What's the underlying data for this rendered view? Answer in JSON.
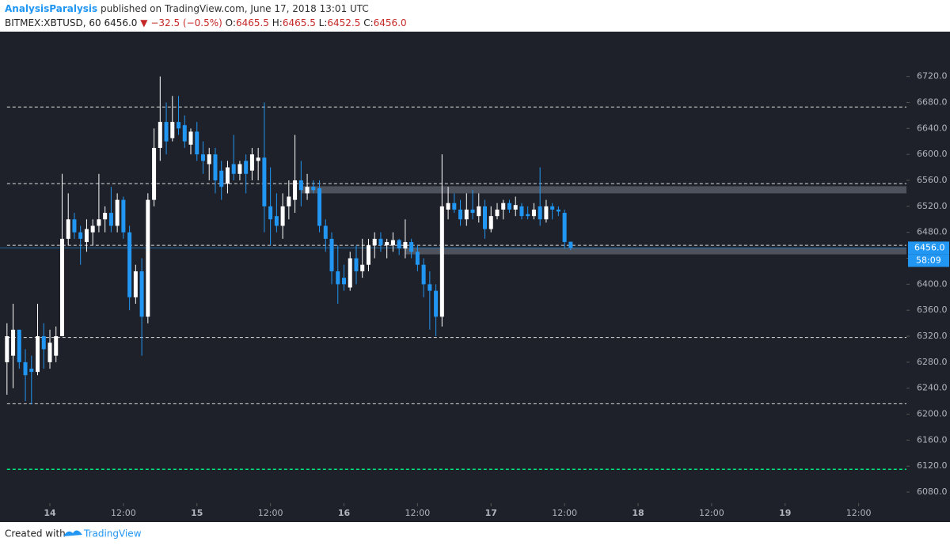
{
  "header": {
    "author": "AnalysisParalysis",
    "published": " published on TradingView.com, June 17, 2018 13:01 UTC",
    "symbol": "BITMEX:XBTUSD, 60",
    "last": "6456.0",
    "change": "▼ −32.5 (−0.5%)",
    "ohlc": [
      {
        "label": "O:",
        "value": "6465.5"
      },
      {
        "label": "H:",
        "value": "6465.5"
      },
      {
        "label": "L:",
        "value": "6452.5"
      },
      {
        "label": "C:",
        "value": "6456.0"
      }
    ]
  },
  "footer": {
    "created": "Created with",
    "brand": "TradingView"
  },
  "chart_data": {
    "type": "candlestick",
    "x": [
      -7,
      -6,
      -5,
      -4,
      -3,
      -2,
      -1,
      0,
      1,
      2,
      3,
      4,
      5,
      6,
      7,
      8,
      9,
      10,
      11,
      12,
      13,
      14,
      15,
      16,
      17,
      18,
      19,
      20,
      21,
      22,
      23,
      24,
      25,
      26,
      27,
      28,
      29,
      30,
      31,
      32,
      33,
      34,
      35,
      36,
      37,
      38,
      39,
      40,
      41,
      42,
      43,
      44,
      45,
      46,
      47,
      48,
      49,
      50,
      51,
      52,
      53,
      54,
      55,
      56,
      57,
      58,
      59,
      60,
      61,
      62,
      63,
      64,
      65,
      66,
      67,
      68,
      69,
      70,
      71,
      72,
      73,
      74,
      75,
      76,
      77,
      78,
      79,
      80,
      81,
      82,
      83,
      84,
      85
    ],
    "open": [
      6280,
      6290,
      6330,
      6280,
      6270,
      6265,
      6320,
      6280,
      6290,
      6320,
      6470,
      6500,
      6480,
      6465,
      6480,
      6490,
      6500,
      6510,
      6490,
      6530,
      6480,
      6380,
      6420,
      6350,
      6530,
      6610,
      6650,
      6625,
      6650,
      6645,
      6615,
      6635,
      6600,
      6585,
      6600,
      6575,
      6555,
      6585,
      6570,
      6590,
      6575,
      6590,
      6595,
      6520,
      6505,
      6490,
      6520,
      6530,
      6560,
      6540,
      6550,
      6548,
      6490,
      6470,
      6420,
      6410,
      6395,
      6440,
      6420,
      6430,
      6460,
      6470,
      6460,
      6460,
      6468,
      6455,
      6465,
      6450,
      6430,
      6400,
      6390,
      6350,
      6515,
      6525,
      6515,
      6500,
      6515,
      6505,
      6520,
      6485,
      6505,
      6515,
      6525,
      6515,
      6520,
      6508,
      6505,
      6520,
      6500,
      6520,
      6515,
      6510,
      6465.5
    ],
    "high": [
      6340,
      6370,
      6330,
      6300,
      6290,
      6370,
      6340,
      6330,
      6335,
      6570,
      6540,
      6510,
      6490,
      6500,
      6500,
      6570,
      6520,
      6550,
      6540,
      6535,
      6490,
      6430,
      6440,
      6540,
      6640,
      6720,
      6680,
      6690,
      6690,
      6660,
      6640,
      6650,
      6620,
      6610,
      6610,
      6590,
      6590,
      6630,
      6590,
      6600,
      6610,
      6610,
      6680,
      6580,
      6540,
      6540,
      6560,
      6630,
      6590,
      6570,
      6560,
      6560,
      6500,
      6480,
      6460,
      6430,
      6450,
      6460,
      6470,
      6470,
      6480,
      6480,
      6470,
      6480,
      6470,
      6500,
      6470,
      6460,
      6440,
      6420,
      6400,
      6600,
      6550,
      6540,
      6530,
      6540,
      6545,
      6540,
      6530,
      6520,
      6525,
      6530,
      6530,
      6535,
      6525,
      6520,
      6525,
      6580,
      6530,
      6525,
      6520,
      6515,
      6465.5
    ],
    "low": [
      6230,
      6240,
      6270,
      6220,
      6215,
      6260,
      6270,
      6270,
      6280,
      6320,
      6460,
      6470,
      6430,
      6450,
      6460,
      6480,
      6480,
      6480,
      6480,
      6470,
      6360,
      6370,
      6290,
      6340,
      6520,
      6590,
      6600,
      6620,
      6630,
      6610,
      6600,
      6590,
      6570,
      6560,
      6540,
      6530,
      6540,
      6560,
      6560,
      6540,
      6560,
      6560,
      6480,
      6460,
      6480,
      6470,
      6500,
      6510,
      6520,
      6530,
      6540,
      6480,
      6450,
      6400,
      6370,
      6390,
      6390,
      6400,
      6410,
      6420,
      6440,
      6450,
      6440,
      6450,
      6445,
      6440,
      6440,
      6420,
      6380,
      6330,
      6320,
      6335,
      6500,
      6510,
      6490,
      6490,
      6500,
      6495,
      6470,
      6480,
      6500,
      6500,
      6510,
      6505,
      6500,
      6500,
      6500,
      6490,
      6495,
      6500,
      6505,
      6455,
      6452.5
    ],
    "close": [
      6320,
      6330,
      6280,
      6260,
      6265,
      6320,
      6300,
      6310,
      6320,
      6470,
      6500,
      6480,
      6470,
      6485,
      6490,
      6500,
      6510,
      6490,
      6530,
      6480,
      6380,
      6420,
      6350,
      6530,
      6610,
      6650,
      6620,
      6650,
      6640,
      6620,
      6635,
      6600,
      6590,
      6600,
      6560,
      6550,
      6580,
      6570,
      6585,
      6570,
      6600,
      6595,
      6520,
      6500,
      6490,
      6520,
      6535,
      6560,
      6545,
      6550,
      6545,
      6490,
      6470,
      6420,
      6400,
      6400,
      6440,
      6420,
      6430,
      6460,
      6470,
      6460,
      6465,
      6468,
      6455,
      6465,
      6450,
      6430,
      6400,
      6390,
      6350,
      6520,
      6525,
      6515,
      6500,
      6515,
      6510,
      6520,
      6485,
      6505,
      6515,
      6525,
      6515,
      6522,
      6505,
      6505,
      6515,
      6500,
      6520,
      6515,
      6512,
      6465,
      6456
    ],
    "up_color": "#ffffff",
    "down_color": "#2196f3",
    "xlim": [
      -8.14,
      139.8
    ],
    "xticks": [
      {
        "value": 0,
        "label": "14"
      },
      {
        "value": 12,
        "label": "12:00"
      },
      {
        "value": 24,
        "label": "15"
      },
      {
        "value": 36,
        "label": "12:00"
      },
      {
        "value": 48,
        "label": "16"
      },
      {
        "value": 60,
        "label": "12:00"
      },
      {
        "value": 72,
        "label": "17"
      },
      {
        "value": 84,
        "label": "12:00"
      },
      {
        "value": 96,
        "label": "18"
      },
      {
        "value": 108,
        "label": "12:00"
      },
      {
        "value": 120,
        "label": "19"
      },
      {
        "value": 132,
        "label": "12:00"
      }
    ],
    "ylim": [
      6063,
      6789
    ],
    "yticks": [
      {
        "value": 6080,
        "label": "6080.0"
      },
      {
        "value": 6120,
        "label": "6120.0"
      },
      {
        "value": 6160,
        "label": "6160.0"
      },
      {
        "value": 6200,
        "label": "6200.0"
      },
      {
        "value": 6240,
        "label": "6240.0"
      },
      {
        "value": 6280,
        "label": "6280.0"
      },
      {
        "value": 6320,
        "label": "6320.0"
      },
      {
        "value": 6360,
        "label": "6360.0"
      },
      {
        "value": 6400,
        "label": "6400.0"
      },
      {
        "value": 6440,
        "label": "6440.0"
      },
      {
        "value": 6480,
        "label": "6480.0"
      },
      {
        "value": 6520,
        "label": "6520.0"
      },
      {
        "value": 6560,
        "label": "6560.0"
      },
      {
        "value": 6600,
        "label": "6600.0"
      },
      {
        "value": 6640,
        "label": "6640.0"
      },
      {
        "value": 6680,
        "label": "6680.0"
      },
      {
        "value": 6720,
        "label": "6720.0"
      }
    ],
    "hlines": [
      {
        "value": 6673,
        "color": "#e0e0e0"
      },
      {
        "value": 6555,
        "color": "#e0e0e0"
      },
      {
        "value": 6460,
        "color": "#e0e0e0"
      },
      {
        "value": 6318,
        "color": "#e0e0e0"
      },
      {
        "value": 6216,
        "color": "#e0e0e0"
      },
      {
        "value": 6115,
        "color": "#00e676"
      }
    ],
    "zones": [
      {
        "from": 6540,
        "to": 6551,
        "start": 41
      },
      {
        "from": 6446,
        "to": 6456,
        "start": 58
      }
    ],
    "price_line": {
      "value": 6456,
      "label": "6456.0",
      "countdown": "58:09",
      "color": "#2196f3"
    }
  }
}
